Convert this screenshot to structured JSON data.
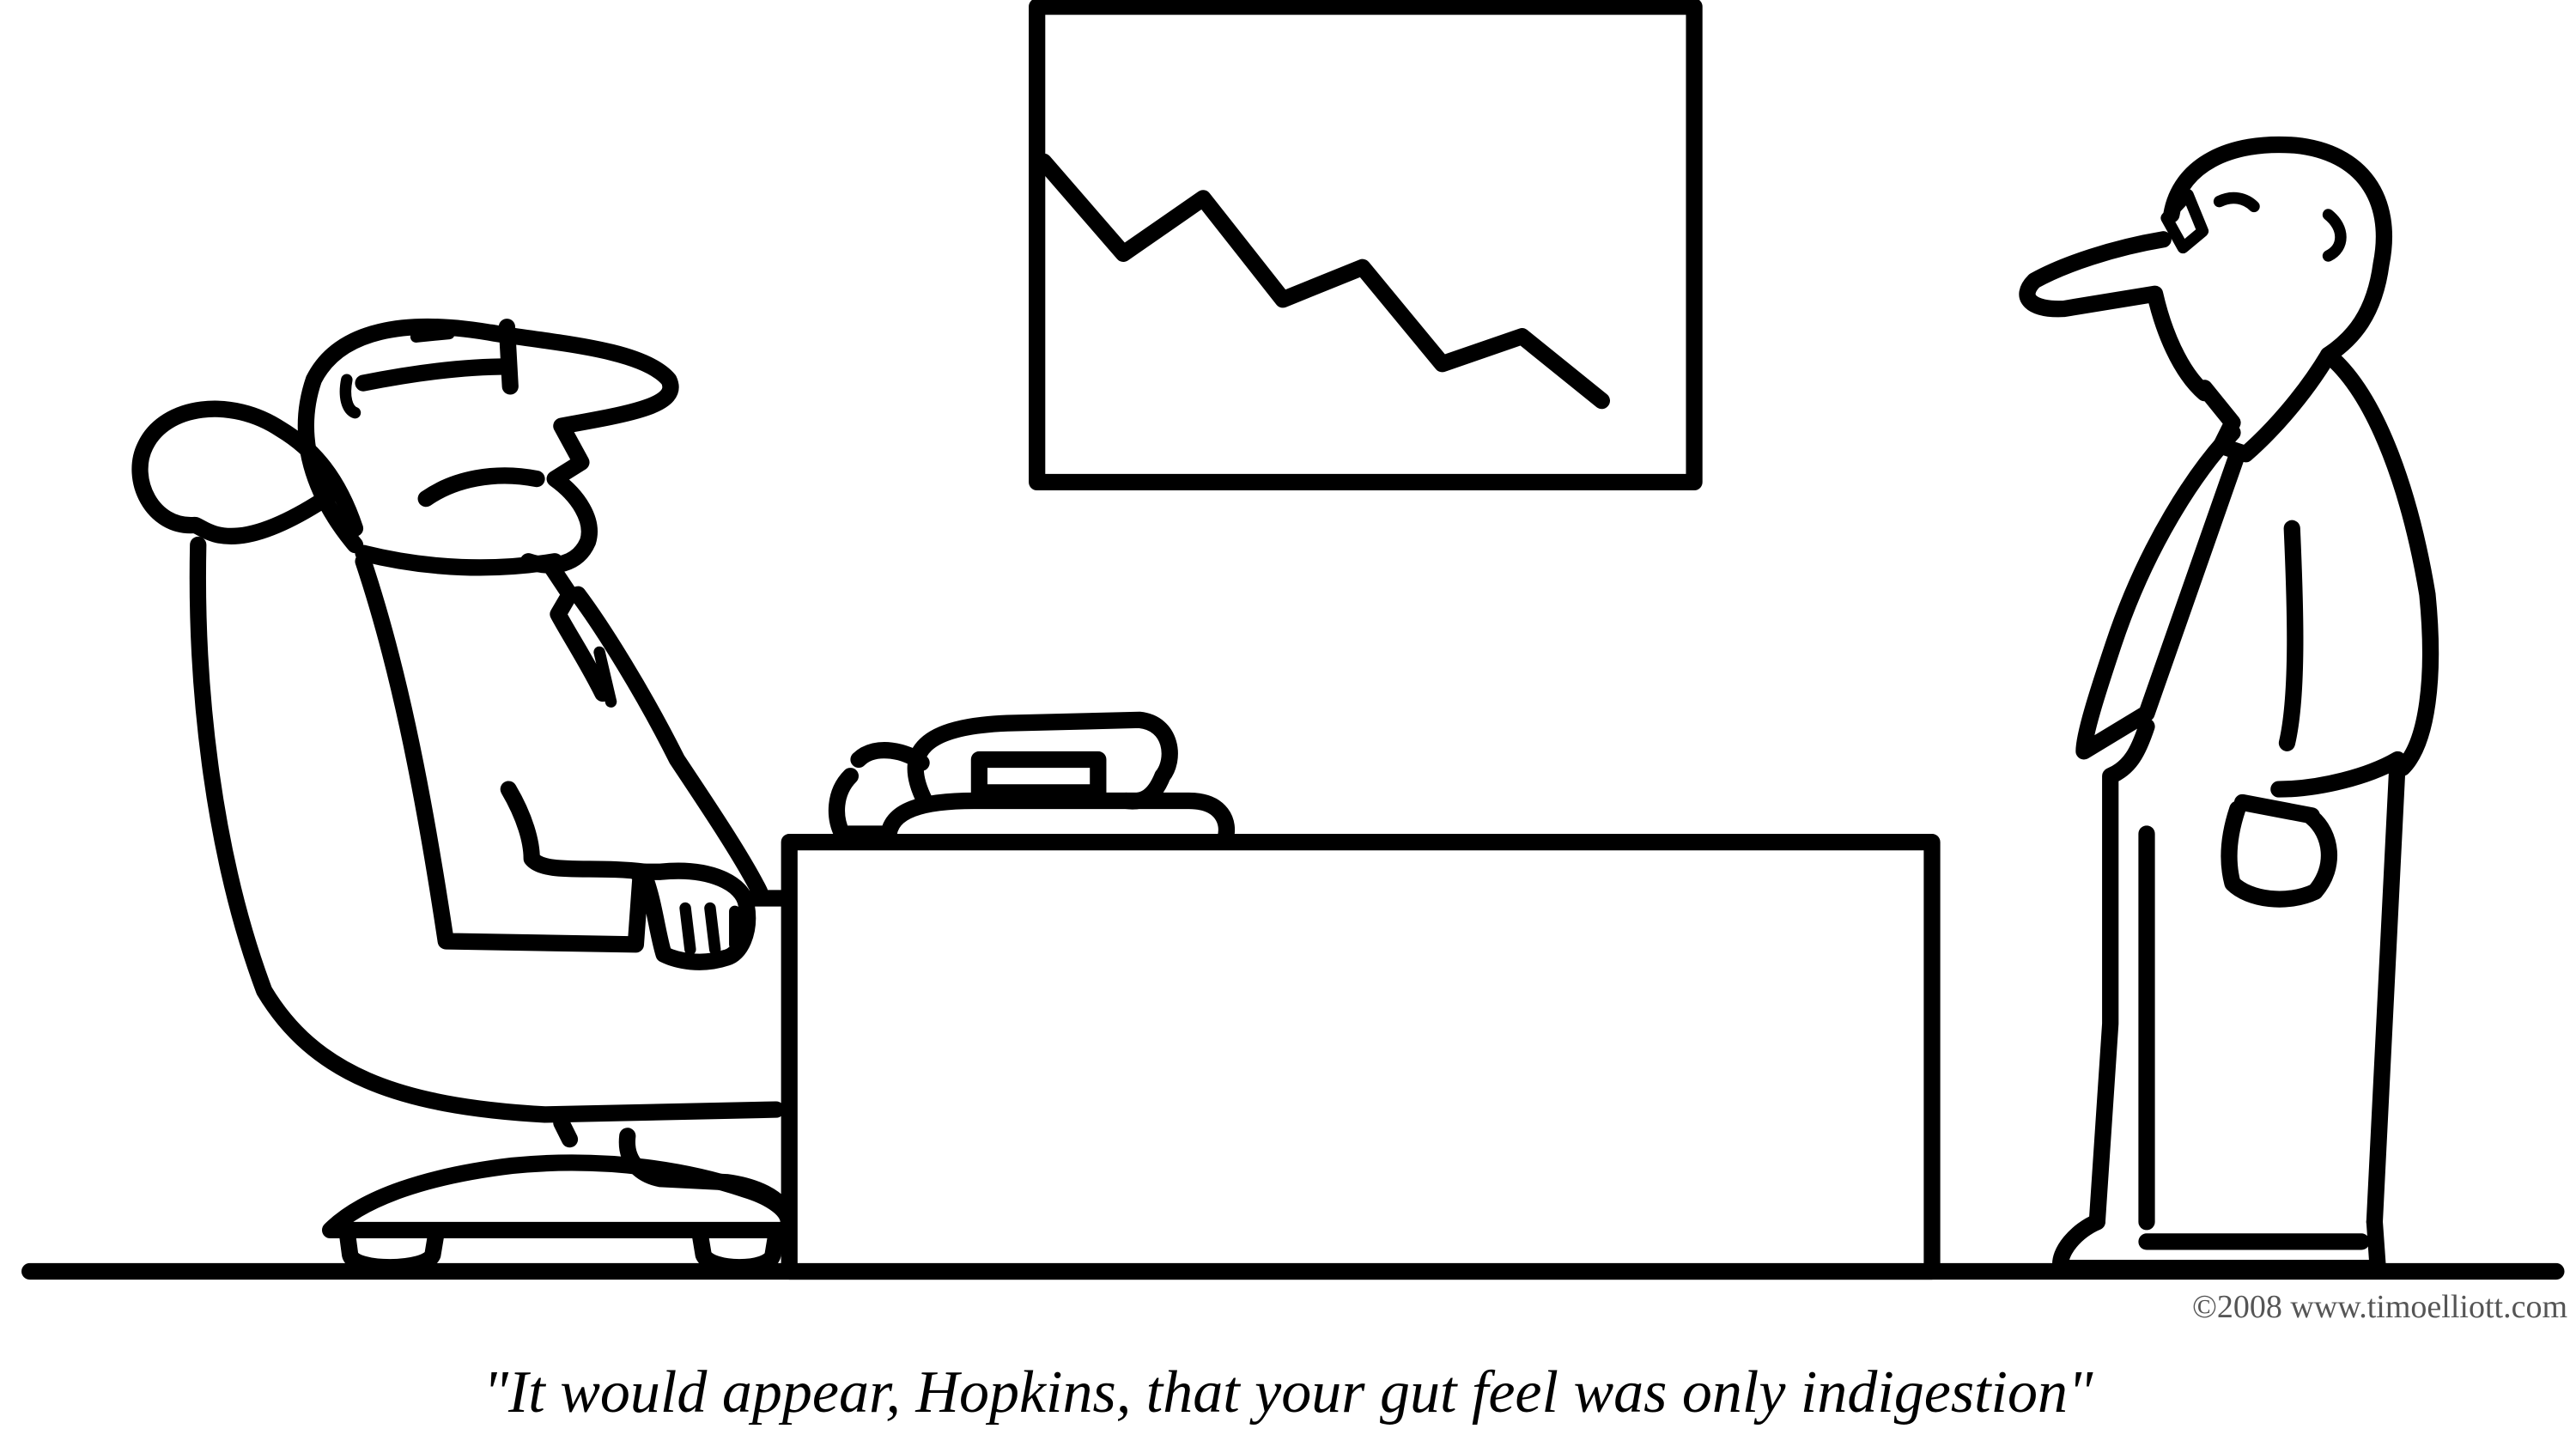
{
  "cartoon": {
    "caption": "\"It would appear, Hopkins, that your gut feel was only indigestion\"",
    "copyright": "©2008 www.timoelliott.com"
  },
  "wall_chart": {
    "trend": "downward",
    "values": [
      90,
      70,
      82,
      60,
      67,
      46,
      52,
      38
    ]
  }
}
